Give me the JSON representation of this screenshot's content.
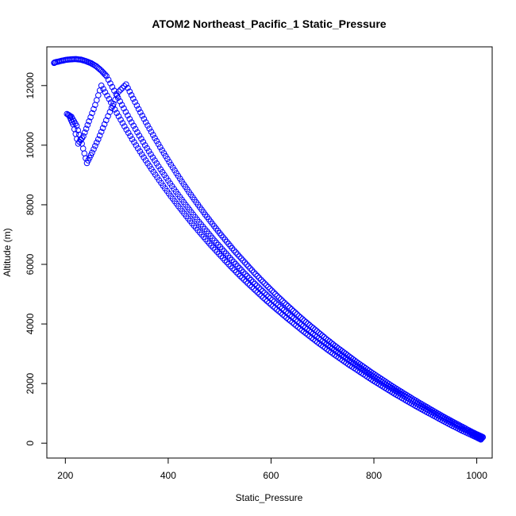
{
  "chart_data": {
    "type": "scatter",
    "title": "ATOM2 Northeast_Pacific_1 Static_Pressure",
    "xlabel": "Static_Pressure",
    "ylabel": "Altitude (m)",
    "xlim": [
      164,
      1030
    ],
    "ylim": [
      -500,
      13300
    ],
    "x_ticks": [
      200,
      400,
      600,
      800,
      1000
    ],
    "y_ticks": [
      0,
      2000,
      4000,
      6000,
      8000,
      10000,
      12000
    ],
    "marker": "open-circle",
    "grid": false,
    "legend": "none",
    "colors": {
      "points": "#0000ff"
    },
    "series": [
      {
        "x": [
          1010,
          1002,
          994,
          985,
          970,
          955,
          940,
          925,
          910,
          895,
          880,
          865,
          850,
          835,
          820,
          805,
          790,
          775,
          760,
          745,
          730,
          715,
          700,
          685,
          670,
          655,
          640,
          625,
          610,
          595,
          580,
          565,
          550,
          535,
          520,
          505,
          490,
          475,
          460,
          445,
          430,
          415,
          400,
          385,
          370,
          355,
          340,
          325,
          310,
          295,
          280,
          270,
          260,
          250,
          240,
          230,
          220,
          210,
          200,
          190,
          180,
          178
        ],
        "y": [
          160,
          230,
          300,
          380,
          510,
          650,
          790,
          930,
          1070,
          1220,
          1370,
          1520,
          1680,
          1840,
          2000,
          2160,
          2330,
          2500,
          2680,
          2860,
          3040,
          3230,
          3420,
          3620,
          3820,
          4030,
          4240,
          4460,
          4690,
          4920,
          5160,
          5410,
          5670,
          5940,
          6220,
          6510,
          6800,
          7110,
          7420,
          7750,
          8090,
          8440,
          8810,
          9190,
          9590,
          10000,
          10430,
          10880,
          11350,
          11830,
          12320,
          12500,
          12650,
          12750,
          12820,
          12870,
          12890,
          12880,
          12860,
          12820,
          12780,
          12760
        ]
      },
      {
        "x": [
          1008,
          1000,
          990,
          975,
          960,
          945,
          930,
          915,
          900,
          885,
          870,
          855,
          840,
          825,
          810,
          795,
          780,
          765,
          750,
          735,
          720,
          705,
          690,
          675,
          660,
          645,
          630,
          615,
          600,
          585,
          570,
          555,
          540,
          525,
          510,
          495,
          480,
          465,
          450,
          435,
          420,
          405,
          390,
          375,
          360,
          345,
          330,
          315,
          300,
          285,
          270,
          258,
          246,
          235,
          225,
          215,
          207
        ],
        "y": [
          120,
          190,
          270,
          390,
          520,
          650,
          790,
          930,
          1070,
          1210,
          1360,
          1510,
          1660,
          1820,
          1980,
          2140,
          2310,
          2480,
          2650,
          2830,
          3010,
          3200,
          3390,
          3590,
          3790,
          4000,
          4210,
          4430,
          4650,
          4880,
          5120,
          5360,
          5610,
          5870,
          6140,
          6420,
          6700,
          7000,
          7300,
          7620,
          7950,
          8290,
          8640,
          9010,
          9390,
          9790,
          10200,
          10630,
          11080,
          11550,
          12000,
          11350,
          10800,
          10300,
          10050,
          10700,
          11000
        ]
      },
      {
        "x": [
          1012,
          1005,
          996,
          988,
          975,
          962,
          948,
          934,
          920,
          906,
          892,
          878,
          864,
          850,
          836,
          822,
          808,
          794,
          780,
          766,
          752,
          738,
          724,
          710,
          696,
          682,
          668,
          654,
          640,
          626,
          612,
          598,
          584,
          570,
          556,
          542,
          528,
          514,
          500,
          486,
          472,
          458,
          444,
          430,
          416,
          402,
          388,
          374,
          360,
          346,
          332,
          318,
          304,
          290,
          276,
          264,
          252,
          242,
          232,
          222,
          212,
          203
        ],
        "y": [
          200,
          260,
          330,
          400,
          520,
          640,
          770,
          900,
          1040,
          1180,
          1320,
          1460,
          1610,
          1760,
          1910,
          2070,
          2230,
          2390,
          2560,
          2730,
          2910,
          3090,
          3270,
          3460,
          3660,
          3860,
          4060,
          4270,
          4490,
          4710,
          4940,
          5180,
          5420,
          5670,
          5930,
          6200,
          6470,
          6760,
          7050,
          7360,
          7670,
          8000,
          8340,
          8690,
          9060,
          9440,
          9830,
          10240,
          10660,
          11100,
          11560,
          12040,
          11800,
          11250,
          10700,
          10200,
          9750,
          9400,
          10050,
          10650,
          10950,
          11050
        ]
      }
    ]
  }
}
